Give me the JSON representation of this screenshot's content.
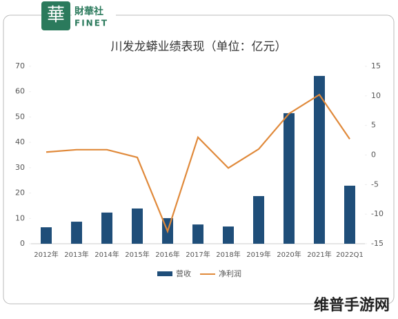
{
  "logo": {
    "name": "財華社",
    "sub": "FINET"
  },
  "watermark": "维普手游网",
  "chart_data": {
    "type": "bar-line",
    "title": "川发龙蟒业绩表现（单位：亿元）",
    "categories": [
      "2012年",
      "2013年",
      "2014年",
      "2015年",
      "2016年",
      "2017年",
      "2018年",
      "2019年",
      "2020年",
      "2021年",
      "2022Q1"
    ],
    "series": [
      {
        "name": "营收",
        "type": "bar",
        "color": "#1f4e79",
        "values": [
          6.5,
          8.7,
          12.3,
          13.9,
          10.1,
          7.6,
          6.8,
          18.8,
          51.5,
          66.2,
          22.9
        ]
      },
      {
        "name": "净利润",
        "type": "line",
        "axis": "y2",
        "color": "#e0893a",
        "values": [
          0.5,
          0.9,
          0.9,
          -0.4,
          -12.9,
          3.0,
          -2.2,
          1.0,
          7.0,
          10.2,
          2.7
        ]
      }
    ],
    "ylim": [
      0,
      70
    ],
    "yticks": [
      0,
      10,
      20,
      30,
      40,
      50,
      60,
      70
    ],
    "y2lim": [
      -15,
      15
    ],
    "y2ticks": [
      -15,
      -10,
      -5,
      0,
      5,
      10,
      15
    ],
    "legend": "bottom"
  }
}
